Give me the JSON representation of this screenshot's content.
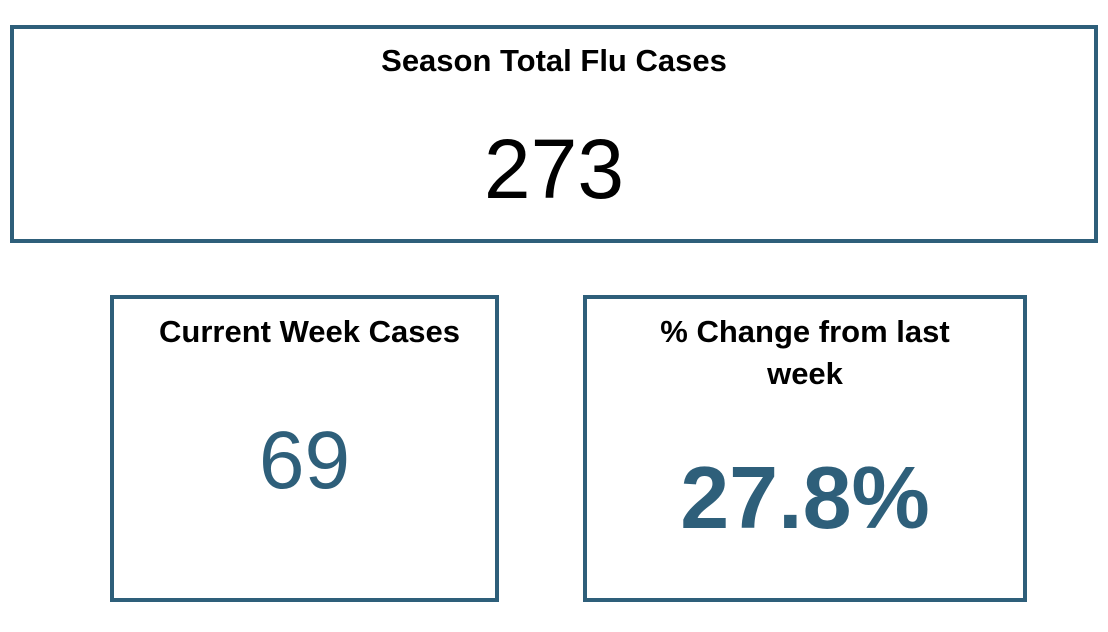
{
  "cards": [
    {
      "title": "Season Total Flu Cases",
      "value": 273
    },
    {
      "title": "Current Week Cases",
      "value": 69
    },
    {
      "title": "% Change from last week",
      "value": "27.8%"
    }
  ]
}
